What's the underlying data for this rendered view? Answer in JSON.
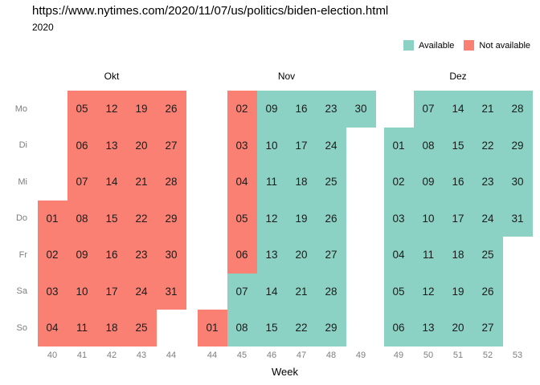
{
  "chart_data": {
    "type": "heatmap",
    "title": "https://www.nytimes.com/2020/11/07/us/politics/biden-election.html",
    "subtitle": "2020",
    "xlabel": "Week",
    "legend_position": "top-right",
    "legend_items": [
      {
        "label": "Available",
        "status": "av"
      },
      {
        "label": "Not available",
        "status": "na"
      }
    ],
    "colors": {
      "available": "#8BD2C4",
      "not_available": "#F98072"
    },
    "day_rows": [
      "Mo",
      "Di",
      "Mi",
      "Do",
      "Fr",
      "Sa",
      "So"
    ],
    "months": [
      {
        "name": "Okt",
        "weeks": [
          "40",
          "41",
          "42",
          "43",
          "44"
        ],
        "cells": [
          [
            0,
            1,
            "05",
            "na"
          ],
          [
            0,
            2,
            "12",
            "na"
          ],
          [
            0,
            3,
            "19",
            "na"
          ],
          [
            0,
            4,
            "26",
            "na"
          ],
          [
            1,
            1,
            "06",
            "na"
          ],
          [
            1,
            2,
            "13",
            "na"
          ],
          [
            1,
            3,
            "20",
            "na"
          ],
          [
            1,
            4,
            "27",
            "na"
          ],
          [
            2,
            1,
            "07",
            "na"
          ],
          [
            2,
            2,
            "14",
            "na"
          ],
          [
            2,
            3,
            "21",
            "na"
          ],
          [
            2,
            4,
            "28",
            "na"
          ],
          [
            3,
            0,
            "01",
            "na"
          ],
          [
            3,
            1,
            "08",
            "na"
          ],
          [
            3,
            2,
            "15",
            "na"
          ],
          [
            3,
            3,
            "22",
            "na"
          ],
          [
            3,
            4,
            "29",
            "na"
          ],
          [
            4,
            0,
            "02",
            "na"
          ],
          [
            4,
            1,
            "09",
            "na"
          ],
          [
            4,
            2,
            "16",
            "na"
          ],
          [
            4,
            3,
            "23",
            "na"
          ],
          [
            4,
            4,
            "30",
            "na"
          ],
          [
            5,
            0,
            "03",
            "na"
          ],
          [
            5,
            1,
            "10",
            "na"
          ],
          [
            5,
            2,
            "17",
            "na"
          ],
          [
            5,
            3,
            "24",
            "na"
          ],
          [
            5,
            4,
            "31",
            "na"
          ],
          [
            6,
            0,
            "04",
            "na"
          ],
          [
            6,
            1,
            "11",
            "na"
          ],
          [
            6,
            2,
            "18",
            "na"
          ],
          [
            6,
            3,
            "25",
            "na"
          ]
        ]
      },
      {
        "name": "Nov",
        "weeks": [
          "44",
          "45",
          "46",
          "47",
          "48",
          "49"
        ],
        "cells": [
          [
            0,
            1,
            "02",
            "na"
          ],
          [
            0,
            2,
            "09",
            "av"
          ],
          [
            0,
            3,
            "16",
            "av"
          ],
          [
            0,
            4,
            "23",
            "av"
          ],
          [
            0,
            5,
            "30",
            "av"
          ],
          [
            1,
            1,
            "03",
            "na"
          ],
          [
            1,
            2,
            "10",
            "av"
          ],
          [
            1,
            3,
            "17",
            "av"
          ],
          [
            1,
            4,
            "24",
            "av"
          ],
          [
            2,
            1,
            "04",
            "na"
          ],
          [
            2,
            2,
            "11",
            "av"
          ],
          [
            2,
            3,
            "18",
            "av"
          ],
          [
            2,
            4,
            "25",
            "av"
          ],
          [
            3,
            1,
            "05",
            "na"
          ],
          [
            3,
            2,
            "12",
            "av"
          ],
          [
            3,
            3,
            "19",
            "av"
          ],
          [
            3,
            4,
            "26",
            "av"
          ],
          [
            4,
            1,
            "06",
            "na"
          ],
          [
            4,
            2,
            "13",
            "av"
          ],
          [
            4,
            3,
            "20",
            "av"
          ],
          [
            4,
            4,
            "27",
            "av"
          ],
          [
            5,
            1,
            "07",
            "av"
          ],
          [
            5,
            2,
            "14",
            "av"
          ],
          [
            5,
            3,
            "21",
            "av"
          ],
          [
            5,
            4,
            "28",
            "av"
          ],
          [
            6,
            0,
            "01",
            "na"
          ],
          [
            6,
            1,
            "08",
            "av"
          ],
          [
            6,
            2,
            "15",
            "av"
          ],
          [
            6,
            3,
            "22",
            "av"
          ],
          [
            6,
            4,
            "29",
            "av"
          ]
        ]
      },
      {
        "name": "Dez",
        "weeks": [
          "49",
          "50",
          "51",
          "52",
          "53"
        ],
        "cells": [
          [
            0,
            1,
            "07",
            "av"
          ],
          [
            0,
            2,
            "14",
            "av"
          ],
          [
            0,
            3,
            "21",
            "av"
          ],
          [
            0,
            4,
            "28",
            "av"
          ],
          [
            1,
            0,
            "01",
            "av"
          ],
          [
            1,
            1,
            "08",
            "av"
          ],
          [
            1,
            2,
            "15",
            "av"
          ],
          [
            1,
            3,
            "22",
            "av"
          ],
          [
            1,
            4,
            "29",
            "av"
          ],
          [
            2,
            0,
            "02",
            "av"
          ],
          [
            2,
            1,
            "09",
            "av"
          ],
          [
            2,
            2,
            "16",
            "av"
          ],
          [
            2,
            3,
            "23",
            "av"
          ],
          [
            2,
            4,
            "30",
            "av"
          ],
          [
            3,
            0,
            "03",
            "av"
          ],
          [
            3,
            1,
            "10",
            "av"
          ],
          [
            3,
            2,
            "17",
            "av"
          ],
          [
            3,
            3,
            "24",
            "av"
          ],
          [
            3,
            4,
            "31",
            "av"
          ],
          [
            4,
            0,
            "04",
            "av"
          ],
          [
            4,
            1,
            "11",
            "av"
          ],
          [
            4,
            2,
            "18",
            "av"
          ],
          [
            4,
            3,
            "25",
            "av"
          ],
          [
            5,
            0,
            "05",
            "av"
          ],
          [
            5,
            1,
            "12",
            "av"
          ],
          [
            5,
            2,
            "19",
            "av"
          ],
          [
            5,
            3,
            "26",
            "av"
          ],
          [
            6,
            0,
            "06",
            "av"
          ],
          [
            6,
            1,
            "13",
            "av"
          ],
          [
            6,
            2,
            "20",
            "av"
          ],
          [
            6,
            3,
            "27",
            "av"
          ]
        ]
      }
    ]
  }
}
